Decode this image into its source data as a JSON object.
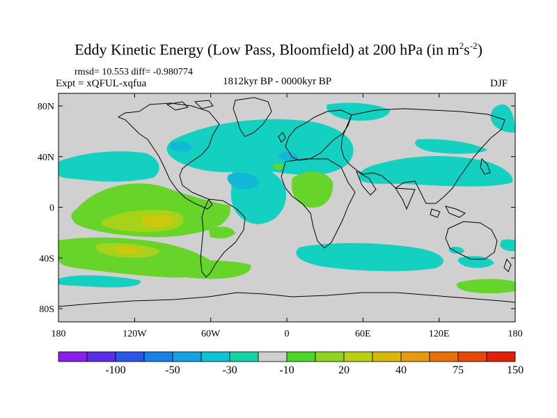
{
  "title": {
    "main": "Eddy Kinetic Energy (Low Pass, Bloomfield) at 200 hPa (in m",
    "sup1": "2",
    "mid": "s",
    "sup2": "-2",
    "end": ")"
  },
  "stats": "rmsd= 10.553 diff= -0.980774",
  "expt": "Expt = xQFUL-xqfua",
  "period": "1812kyr BP - 0000kyr BP",
  "season": "DJF",
  "axes": {
    "lon_ticks": [
      "180",
      "120W",
      "60W",
      "0",
      "60E",
      "120E",
      "180"
    ],
    "lat_ticks": [
      "80N",
      "40N",
      "0",
      "40S",
      "80S"
    ]
  },
  "colorbar": {
    "colors": [
      "#8a1fe6",
      "#5a2ee6",
      "#2a55e6",
      "#1a7fe6",
      "#14a3e0",
      "#12c2d2",
      "#12d2a6",
      "#cfcfcf",
      "#4cd62a",
      "#8cd41e",
      "#b8cf12",
      "#d8b80c",
      "#e69a10",
      "#e6700e",
      "#e6480c",
      "#e0200a"
    ],
    "labels": [
      "-100",
      "-50",
      "-30",
      "-10",
      "20",
      "40",
      "75",
      "150"
    ]
  },
  "map_colors": {
    "background": "#d0d0d0",
    "cyan": "#13d0c0",
    "cyan_deep": "#12b7d6",
    "blue": "#1d8ee8",
    "green": "#66d428",
    "yellowgreen": "#a7d21a",
    "yellow": "#cdc80e",
    "coast": "#000000"
  }
}
